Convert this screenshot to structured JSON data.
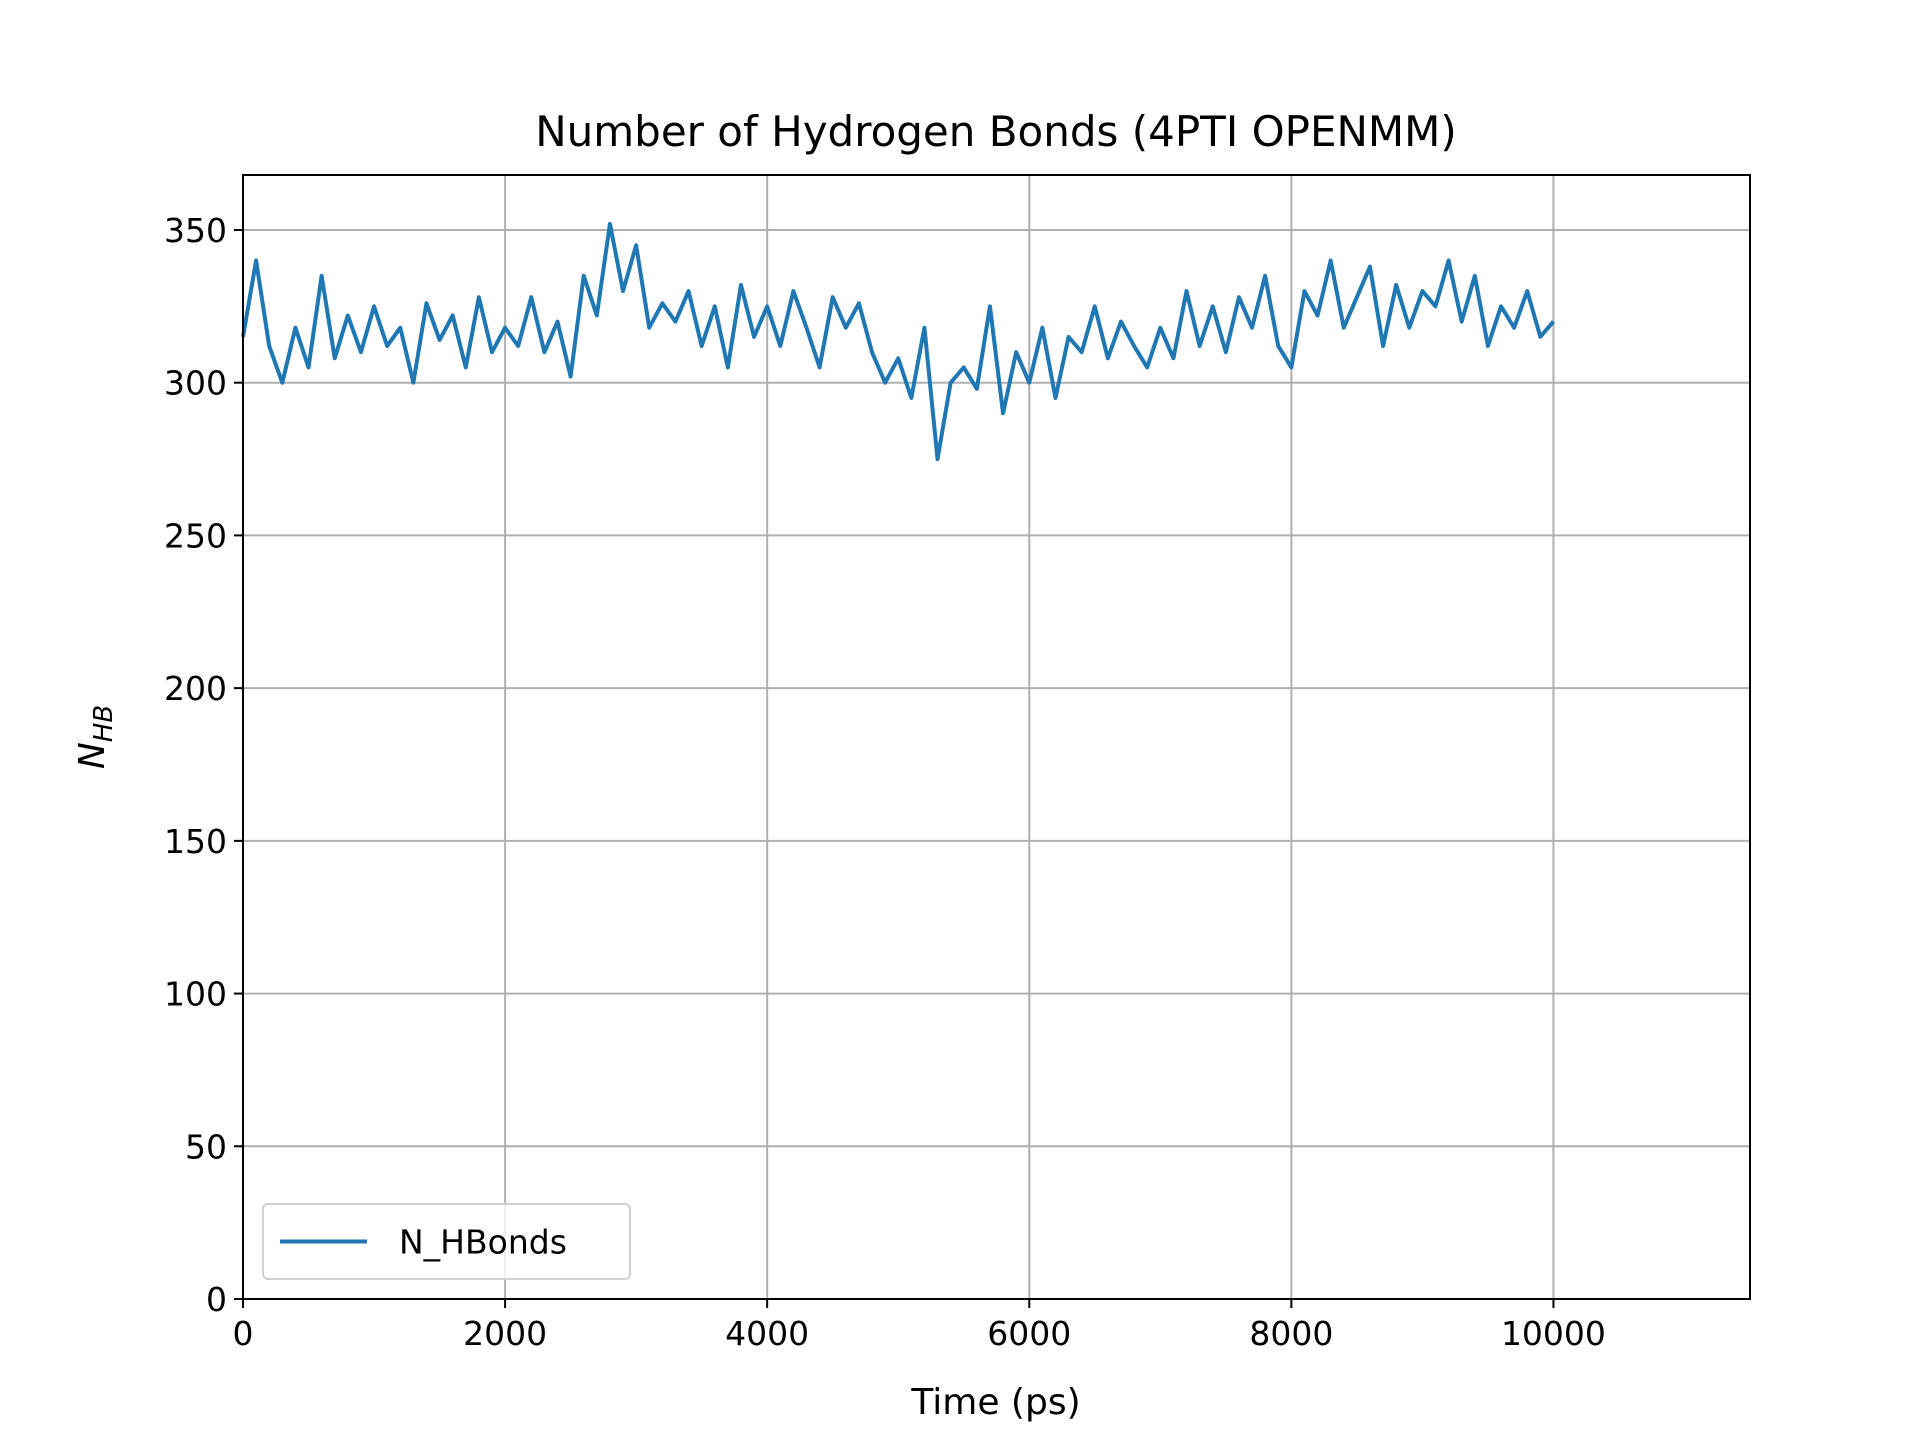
{
  "chart_data": {
    "type": "line",
    "title": "Number of Hydrogen Bonds (4PTI OPENMM)",
    "xlabel": "Time (ps)",
    "ylabel": {
      "symbol": "N",
      "subscript": "HB"
    },
    "x": [
      0,
      100,
      200,
      300,
      400,
      500,
      600,
      700,
      800,
      900,
      1000,
      1100,
      1200,
      1300,
      1400,
      1500,
      1600,
      1700,
      1800,
      1900,
      2000,
      2100,
      2200,
      2300,
      2400,
      2500,
      2600,
      2700,
      2800,
      2900,
      3000,
      3100,
      3200,
      3300,
      3400,
      3500,
      3600,
      3700,
      3800,
      3900,
      4000,
      4100,
      4200,
      4300,
      4400,
      4500,
      4600,
      4700,
      4800,
      4900,
      5000,
      5100,
      5200,
      5300,
      5400,
      5500,
      5600,
      5700,
      5800,
      5900,
      6000,
      6100,
      6200,
      6300,
      6400,
      6500,
      6600,
      6700,
      6800,
      6900,
      7000,
      7100,
      7200,
      7300,
      7400,
      7500,
      7600,
      7700,
      7800,
      7900,
      8000,
      8100,
      8200,
      8300,
      8400,
      8500,
      8600,
      8700,
      8800,
      8900,
      9000,
      9100,
      9200,
      9300,
      9400,
      9500,
      9600,
      9700,
      9800,
      9900,
      10000
    ],
    "series": [
      {
        "name": "N_HBonds",
        "color": "#1f77b4",
        "values": [
          315,
          340,
          312,
          300,
          318,
          305,
          335,
          308,
          322,
          310,
          325,
          312,
          318,
          300,
          326,
          314,
          322,
          305,
          328,
          310,
          318,
          312,
          328,
          310,
          320,
          302,
          335,
          322,
          352,
          330,
          345,
          318,
          326,
          320,
          330,
          312,
          325,
          305,
          332,
          315,
          325,
          312,
          330,
          318,
          305,
          328,
          318,
          326,
          310,
          300,
          308,
          295,
          318,
          275,
          300,
          305,
          298,
          325,
          290,
          310,
          300,
          318,
          295,
          315,
          310,
          325,
          308,
          320,
          312,
          305,
          318,
          308,
          330,
          312,
          325,
          310,
          328,
          318,
          335,
          312,
          305,
          330,
          322,
          340,
          318,
          328,
          338,
          312,
          332,
          318,
          330,
          325,
          340,
          320,
          335,
          312,
          325,
          318,
          330,
          315,
          320
        ]
      }
    ],
    "xlim": [
      0,
      11500
    ],
    "ylim": [
      0,
      368
    ],
    "xticks": [
      0,
      2000,
      4000,
      6000,
      8000,
      10000
    ],
    "yticks": [
      0,
      50,
      100,
      150,
      200,
      250,
      300,
      350
    ],
    "grid": true,
    "legend": "lower left"
  }
}
